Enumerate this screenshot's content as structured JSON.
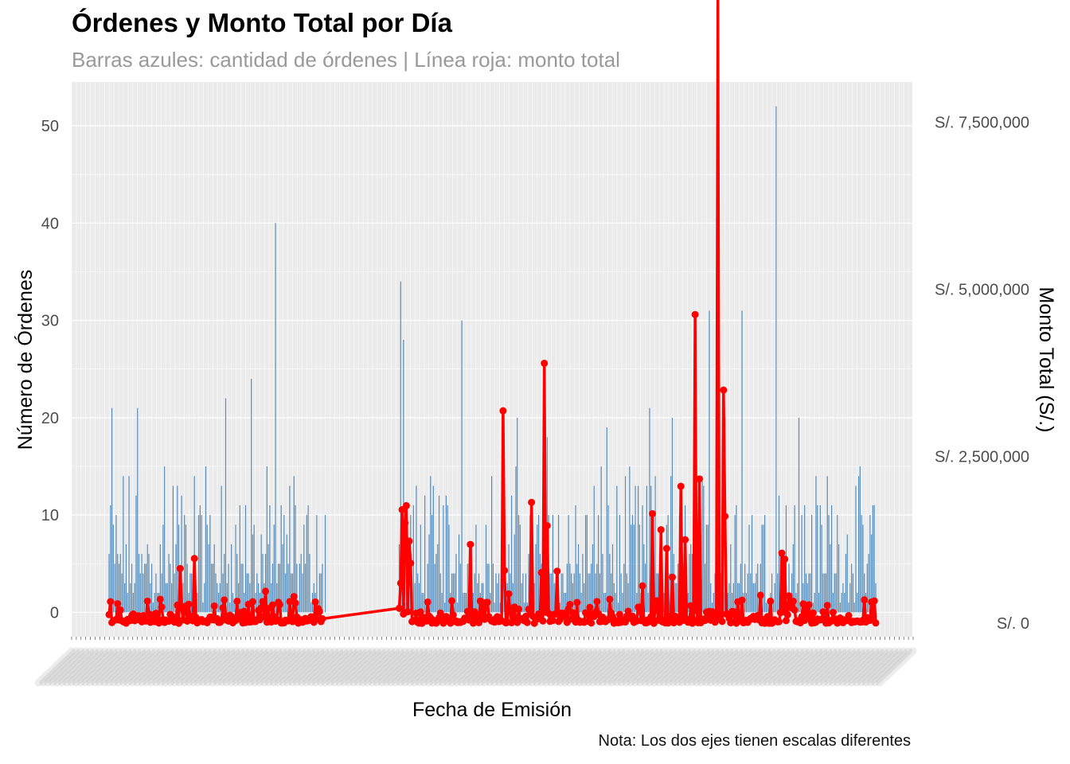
{
  "title": "Órdenes y Monto Total por Día",
  "subtitle": "Barras azules: cantidad de órdenes | Línea roja: monto total",
  "caption": "Nota: Los dos ejes tienen escalas diferentes",
  "chart_data": {
    "type": "bar",
    "title": "Órdenes y Monto Total por Día",
    "xlabel": "Fecha de Emisión",
    "ylabel": "Número de Órdenes",
    "y2label": "Monto Total (S/.)",
    "ylim": [
      -2.5,
      54.5
    ],
    "yticks": [
      0,
      10,
      20,
      30,
      40,
      50
    ],
    "y2lim": [
      -200000,
      8100000
    ],
    "y2ticks": [
      {
        "value": 0,
        "label": "S/. 0"
      },
      {
        "value": 2500000,
        "label": "S/. 2,500,000"
      },
      {
        "value": 5000000,
        "label": "S/. 5,000,000"
      },
      {
        "value": 7500000,
        "label": "S/. 7,500,000"
      }
    ],
    "grid": true,
    "colors": {
      "bars": "#4682B4",
      "line": "#FF0000",
      "panel": "#EBEBEB",
      "grid": "#FFFFFF"
    },
    "n_days": 540,
    "gap_days": [
      150,
      213
    ],
    "series": [
      {
        "name": "Barras azules: cantidad de órdenes",
        "type": "bar",
        "axis": "left",
        "points": [
          [
            2,
            21
          ],
          [
            20,
            21
          ],
          [
            39,
            15
          ],
          [
            48,
            13
          ],
          [
            60,
            14
          ],
          [
            68,
            15
          ],
          [
            82,
            22
          ],
          [
            100,
            24
          ],
          [
            117,
            40
          ],
          [
            130,
            14
          ],
          [
            140,
            11
          ],
          [
            152,
            10
          ],
          [
            205,
            34
          ],
          [
            207,
            28
          ],
          [
            248,
            30
          ],
          [
            287,
            20
          ],
          [
            308,
            18
          ],
          [
            350,
            19
          ],
          [
            380,
            21
          ],
          [
            396,
            20
          ],
          [
            422,
            31
          ],
          [
            433,
            20
          ],
          [
            445,
            31
          ],
          [
            469,
            52
          ],
          [
            485,
            20
          ],
          [
            505,
            14
          ]
        ]
      },
      {
        "name": "Línea roja: monto total",
        "type": "line",
        "axis": "right",
        "points": [
          [
            28,
            140000
          ],
          [
            36,
            360000
          ],
          [
            50,
            820000
          ],
          [
            60,
            970000
          ],
          [
            74,
            260000
          ],
          [
            90,
            330000
          ],
          [
            95,
            180000
          ],
          [
            110,
            480000
          ],
          [
            120,
            280000
          ],
          [
            130,
            400000
          ],
          [
            145,
            320000
          ],
          [
            147,
            220000
          ],
          [
            152,
            70000
          ],
          [
            205,
            600000
          ],
          [
            206,
            1700000
          ],
          [
            209,
            1760000
          ],
          [
            208,
            1500000
          ],
          [
            211,
            1230000
          ],
          [
            212,
            900000
          ],
          [
            220,
            0
          ],
          [
            254,
            1180000
          ],
          [
            277,
            3180000
          ],
          [
            278,
            790000
          ],
          [
            281,
            440000
          ],
          [
            297,
            1810000
          ],
          [
            304,
            760000
          ],
          [
            306,
            3890000
          ],
          [
            308,
            1460000
          ],
          [
            315,
            780000
          ],
          [
            352,
            360000
          ],
          [
            375,
            560000
          ],
          [
            382,
            1640000
          ],
          [
            388,
            1400000
          ],
          [
            392,
            1120000
          ],
          [
            396,
            690000
          ],
          [
            402,
            2050000
          ],
          [
            405,
            1250000
          ],
          [
            412,
            4620000
          ],
          [
            415,
            2160000
          ],
          [
            428,
            9380000
          ],
          [
            432,
            3490000
          ],
          [
            433,
            1600000
          ],
          [
            458,
            420000
          ],
          [
            473,
            1050000
          ],
          [
            475,
            960000
          ],
          [
            478,
            410000
          ],
          [
            490,
            200000
          ]
        ]
      }
    ]
  },
  "x_tick_count": 180
}
